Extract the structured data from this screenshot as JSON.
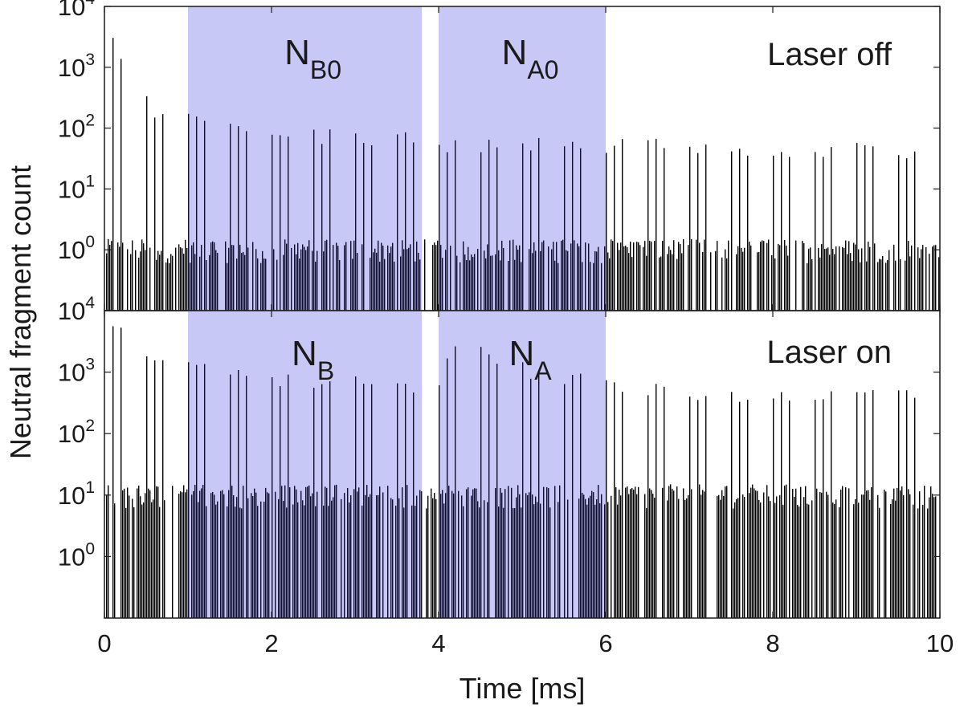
{
  "chart_data": {
    "type": "bar",
    "xlabel": "Time [ms]",
    "ylabel": "Neutral fragment count",
    "xlim": [
      0,
      10
    ],
    "x_ticks": [
      0,
      2,
      4,
      6,
      8,
      10
    ],
    "y_scale": "log",
    "ylim_exponents": [
      -1,
      4
    ],
    "y_tick_exponents": [
      0,
      1,
      2,
      3,
      4
    ],
    "y_tick_base": "10",
    "shade_color": "#c8c8f7",
    "bar_color": "#000000",
    "bar_color_shaded": "#0d0d33",
    "bunch_period_ms": 0.1,
    "panels": [
      {
        "label": "Laser off",
        "regions": [
          {
            "main": "N",
            "sub": "B0",
            "x_start": 1.0,
            "x_end": 3.8
          },
          {
            "main": "N",
            "sub": "A0",
            "x_start": 4.0,
            "x_end": 6.0
          }
        ],
        "peak_envelope": {
          "x": [
            0.15,
            0.3,
            0.6,
            1.0,
            2.0,
            3.0,
            3.8,
            4.0,
            5.0,
            6.0,
            7.0,
            8.0,
            9.0,
            10.0
          ],
          "y": [
            3500,
            800,
            250,
            180,
            110,
            90,
            85,
            70,
            70,
            70,
            65,
            60,
            60,
            55
          ]
        },
        "baseline_level": 1
      },
      {
        "label": "Laser on",
        "regions": [
          {
            "main": "N",
            "sub": "B",
            "x_start": 1.0,
            "x_end": 3.8
          },
          {
            "main": "N",
            "sub": "A",
            "x_start": 4.0,
            "x_end": 6.0
          }
        ],
        "peak_envelope": {
          "x": [
            0.15,
            0.3,
            0.6,
            1.0,
            2.0,
            3.0,
            3.8,
            4.0,
            4.2,
            5.0,
            6.0,
            7.0,
            8.0,
            9.0,
            10.0
          ],
          "y": [
            8000,
            4000,
            2000,
            1500,
            1000,
            900,
            800,
            900,
            4000,
            1500,
            800,
            600,
            500,
            500,
            600
          ]
        },
        "baseline_level": 10
      }
    ]
  }
}
